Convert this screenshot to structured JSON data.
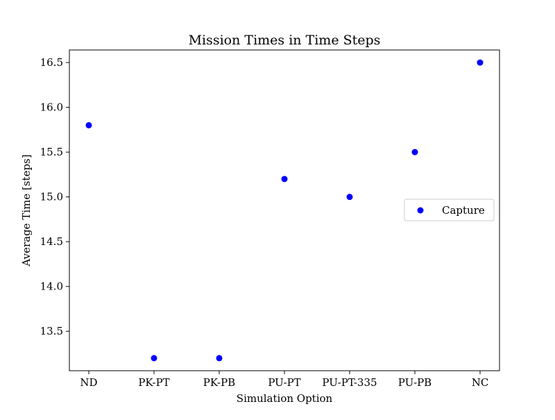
{
  "chart_data": {
    "type": "scatter",
    "title": "Mission Times in Time Steps",
    "xlabel": "Simulation Option",
    "ylabel": "Average Time [steps]",
    "categories": [
      "ND",
      "PK-PT",
      "PK-PB",
      "PU-PT",
      "PU-PT-335",
      "PU-PB",
      "NC"
    ],
    "series": [
      {
        "name": "Capture",
        "color": "#0000ff",
        "values": [
          15.8,
          13.2,
          13.2,
          15.2,
          15.0,
          15.5,
          16.5
        ]
      }
    ],
    "ylim": [
      13.06,
      16.64
    ],
    "yticks": [
      "13.5",
      "14.0",
      "14.5",
      "15.0",
      "15.5",
      "16.0",
      "16.5"
    ],
    "grid": false,
    "legend_position": "center-right"
  }
}
